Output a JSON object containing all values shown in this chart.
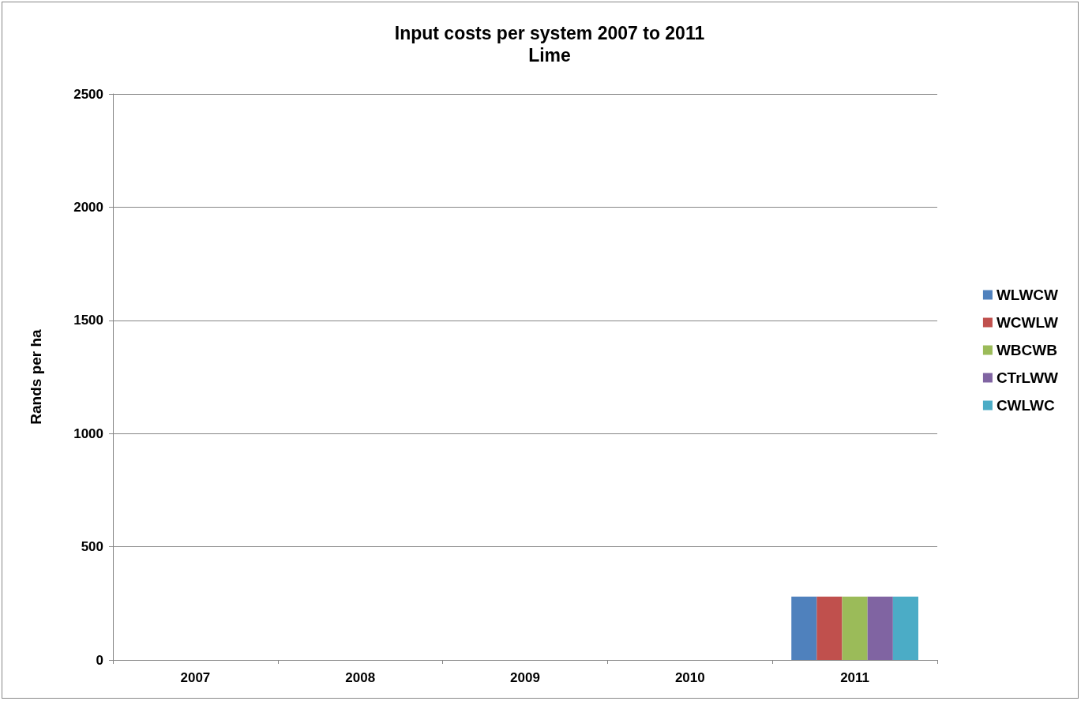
{
  "chart_data": {
    "type": "bar",
    "title": "Input costs per system 2007 to 2011\nLime",
    "ylabel": "Rands per ha",
    "categories": [
      "2007",
      "2008",
      "2009",
      "2010",
      "2011"
    ],
    "series": [
      {
        "name": "WLWCW",
        "color": "#4f81bd",
        "values": [
          0,
          0,
          0,
          0,
          280
        ]
      },
      {
        "name": "WCWLW",
        "color": "#c0504d",
        "values": [
          0,
          0,
          0,
          0,
          280
        ]
      },
      {
        "name": "WBCWB",
        "color": "#9bbb59",
        "values": [
          0,
          0,
          0,
          0,
          280
        ]
      },
      {
        "name": "CTrLWW",
        "color": "#8064a2",
        "values": [
          0,
          0,
          0,
          0,
          280
        ]
      },
      {
        "name": "CWLWC",
        "color": "#4bacc6",
        "values": [
          0,
          0,
          0,
          0,
          280
        ]
      }
    ],
    "ylim": [
      0,
      2500
    ],
    "yticks": [
      0,
      500,
      1000,
      1500,
      2000,
      2500
    ],
    "grid": "y",
    "legend": "right"
  }
}
